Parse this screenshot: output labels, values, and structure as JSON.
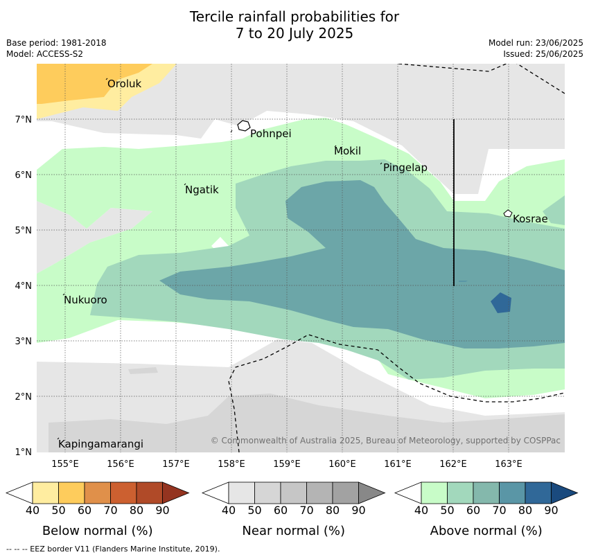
{
  "title": {
    "line1": "Tercile rainfall probabilities for",
    "line2": "7 to 20 July 2025"
  },
  "meta": {
    "base_period": "Base period: 1981-2018",
    "model": "Model: ACCESS-S2",
    "model_run": "Model run: 23/06/2025",
    "issued": "Issued: 25/06/2025"
  },
  "axes": {
    "lon_ticks": [
      "155°E",
      "156°E",
      "157°E",
      "158°E",
      "159°E",
      "160°E",
      "161°E",
      "162°E",
      "163°E"
    ],
    "lat_ticks": [
      "7°N",
      "6°N",
      "5°N",
      "4°N",
      "3°N",
      "2°N",
      "1°N"
    ]
  },
  "places": {
    "oroluk": "Oroluk",
    "pohnpei": "Pohnpei",
    "mokil": "Mokil",
    "pingelap": "Pingelap",
    "ngatik": "Ngatik",
    "kosrae": "Kosrae",
    "nukuoro": "Nukuoro",
    "kapingamarangi": "Kapingamarangi"
  },
  "copyright": "© Commonwealth of Australia 2025, Bureau of Meteorology, supported by COSPPac",
  "colorbars": [
    {
      "label": "Below normal (%)",
      "ticks": [
        "40",
        "50",
        "60",
        "70",
        "80",
        "90"
      ],
      "colors": [
        "#ffeda0",
        "#fecc5c",
        "#e0904a",
        "#cc6030",
        "#b04a28",
        "#943420"
      ]
    },
    {
      "label": "Near normal (%)",
      "ticks": [
        "40",
        "50",
        "60",
        "70",
        "80",
        "90"
      ],
      "colors": [
        "#e6e6e6",
        "#d6d6d6",
        "#c6c6c6",
        "#b4b4b4",
        "#a2a2a2",
        "#888888"
      ]
    },
    {
      "label": "Above normal (%)",
      "ticks": [
        "40",
        "50",
        "60",
        "70",
        "80",
        "90"
      ],
      "colors": [
        "#c8fcc8",
        "#a2d8bc",
        "#84b8ac",
        "#5a96a6",
        "#306898",
        "#1a4a7e"
      ]
    }
  ],
  "footnote": "--  --  -- EEZ border V11 (Flanders Marine Institute, 2019)."
}
